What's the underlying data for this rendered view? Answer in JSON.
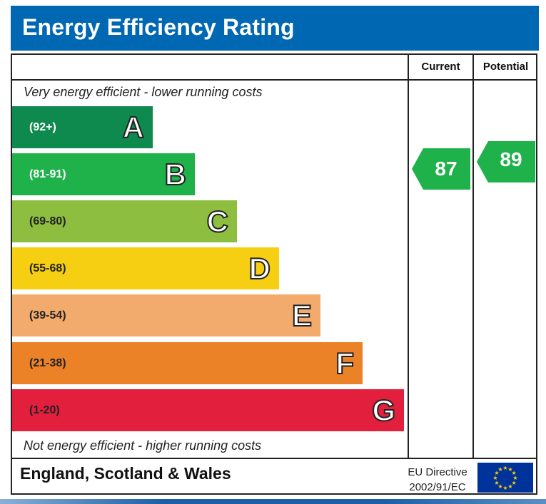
{
  "title": "Energy Efficiency Rating",
  "columns": {
    "current": "Current",
    "potential": "Potential"
  },
  "top_note": "Very energy efficient - lower running costs",
  "bottom_note": "Not energy efficient - higher running costs",
  "footer": {
    "region": "England, Scotland & Wales",
    "directive_line1": "EU Directive",
    "directive_line2": "2002/91/EC"
  },
  "colors": {
    "header": "#0067b3",
    "A": "#0f8a4e",
    "B": "#1fb14a",
    "C": "#8dbe3f",
    "D": "#f6cf12",
    "E": "#f2ab6c",
    "F": "#ec8227",
    "G": "#e21f3d",
    "current_arrow": "#1fb14a",
    "potential_arrow": "#1fb14a"
  },
  "icons": {
    "eu_flag": "eu-flag-icon"
  },
  "chart_data": {
    "type": "bar",
    "title": "Energy Efficiency Rating",
    "categories": [
      "A",
      "B",
      "C",
      "D",
      "E",
      "F",
      "G"
    ],
    "ranges": [
      "(92+)",
      "(81-91)",
      "(69-80)",
      "(55-68)",
      "(39-54)",
      "(21-38)",
      "(1-20)"
    ],
    "current": 87,
    "potential": 89,
    "current_band": "B",
    "potential_band": "B"
  }
}
